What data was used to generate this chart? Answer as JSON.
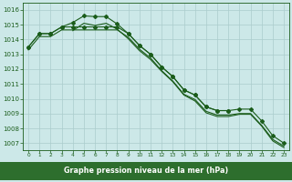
{
  "line1_x": [
    0,
    1,
    2,
    3,
    4,
    5,
    6,
    7,
    8,
    9,
    10,
    11,
    12,
    13,
    14,
    15,
    16,
    17,
    18
  ],
  "line1_y": [
    1013.5,
    1014.4,
    1014.4,
    1014.85,
    1015.15,
    1015.6,
    1015.55,
    1015.55,
    1015.05,
    1014.4,
    1013.6,
    1013.0,
    1012.15,
    1011.5,
    1010.6,
    1010.25,
    1009.45,
    1009.2,
    1009.2
  ],
  "line2_x": [
    0,
    1,
    2,
    3,
    4,
    5,
    6,
    7,
    8,
    9,
    10,
    11,
    12,
    13,
    14,
    15,
    16,
    17,
    18,
    19,
    20,
    21,
    22,
    23
  ],
  "line2_y": [
    1013.5,
    1014.4,
    1014.4,
    1014.85,
    1014.85,
    1014.85,
    1014.85,
    1014.85,
    1014.85,
    1014.4,
    1013.6,
    1013.0,
    1012.15,
    1011.5,
    1010.6,
    1010.25,
    1009.45,
    1009.2,
    1009.2,
    1009.3,
    1009.3,
    1008.5,
    1007.5,
    1007.0
  ],
  "line3_x": [
    0,
    1,
    2,
    3,
    4,
    5,
    6,
    7,
    8,
    9,
    10,
    11,
    12,
    13,
    14,
    15,
    16,
    17,
    18,
    19,
    20,
    21,
    22,
    23
  ],
  "line3_y": [
    1013.3,
    1014.2,
    1014.2,
    1014.65,
    1014.65,
    1014.65,
    1014.65,
    1014.65,
    1014.65,
    1014.15,
    1013.35,
    1012.75,
    1011.9,
    1011.2,
    1010.3,
    1009.95,
    1009.15,
    1008.9,
    1008.9,
    1009.0,
    1009.0,
    1008.2,
    1007.25,
    1006.8
  ],
  "line4_x": [
    4,
    5,
    6,
    7,
    8,
    9,
    10,
    11,
    12,
    13,
    14,
    15,
    16,
    17,
    18,
    19,
    20,
    21,
    22,
    23
  ],
  "line4_y": [
    1014.6,
    1015.1,
    1014.95,
    1015.1,
    1014.7,
    1014.05,
    1013.25,
    1012.65,
    1011.85,
    1011.15,
    1010.25,
    1009.85,
    1009.05,
    1008.8,
    1008.8,
    1008.95,
    1008.95,
    1008.15,
    1007.15,
    1006.7
  ],
  "ylim": [
    1006.5,
    1016.5
  ],
  "yticks": [
    1007,
    1008,
    1009,
    1010,
    1011,
    1012,
    1013,
    1014,
    1015,
    1016
  ],
  "bg_color": "#cce8e8",
  "line_color": "#1a5c1a",
  "grid_color": "#aacccc",
  "xlabel": "Graphe pression niveau de la mer (hPa)",
  "xlabel_color": "#ffffff",
  "xlabel_bg": "#2d6e2d"
}
